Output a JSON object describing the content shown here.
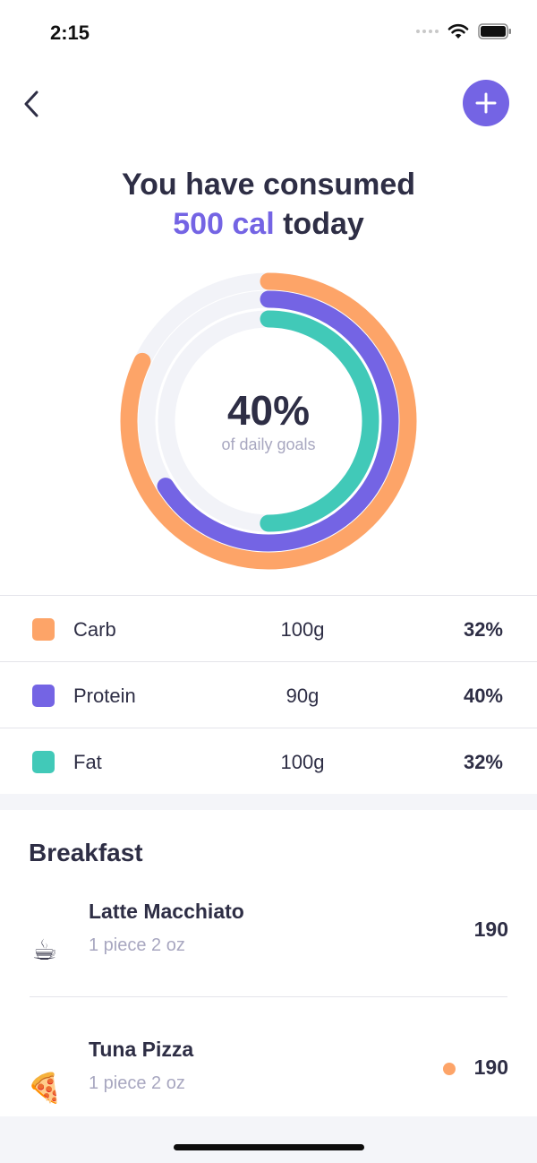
{
  "status_bar": {
    "time": "2:15",
    "icons": [
      "signal-icon",
      "wifi-icon",
      "battery-icon"
    ]
  },
  "nav": {
    "back_icon": "chevron-left-icon",
    "add_icon": "plus-icon"
  },
  "headline": {
    "line1": "You have consumed",
    "calories": "500 cal",
    "suffix": " today"
  },
  "progress": {
    "percent_label": "40%",
    "caption": "of daily goals",
    "rings": [
      {
        "name": "Carb",
        "fraction": 0.82,
        "color": "#fda468"
      },
      {
        "name": "Protein",
        "fraction": 0.66,
        "color": "#7464e4"
      },
      {
        "name": "Fat",
        "fraction": 0.5,
        "color": "#41c9b8"
      }
    ]
  },
  "macros": [
    {
      "name": "Carb",
      "amount": "100g",
      "percent": "32%",
      "color": "#fda468"
    },
    {
      "name": "Protein",
      "amount": "90g",
      "percent": "40%",
      "color": "#7464e4"
    },
    {
      "name": "Fat",
      "amount": "100g",
      "percent": "32%",
      "color": "#41c9b8"
    }
  ],
  "breakfast": {
    "title": "Breakfast",
    "items": [
      {
        "name": "Latte Macchiato",
        "portion": "1 piece 2 oz",
        "calories": "190",
        "icon": "coffee-icon",
        "glyph": "☕"
      },
      {
        "name": "Tuna Pizza",
        "portion": "1 piece 2 oz",
        "calories": "190",
        "icon": "pizza-icon",
        "glyph": "🍕",
        "dot_color": "#fda468"
      }
    ]
  },
  "colors": {
    "accent": "#7464e4",
    "carb": "#fda468",
    "protein": "#7464e4",
    "fat": "#41c9b8"
  }
}
